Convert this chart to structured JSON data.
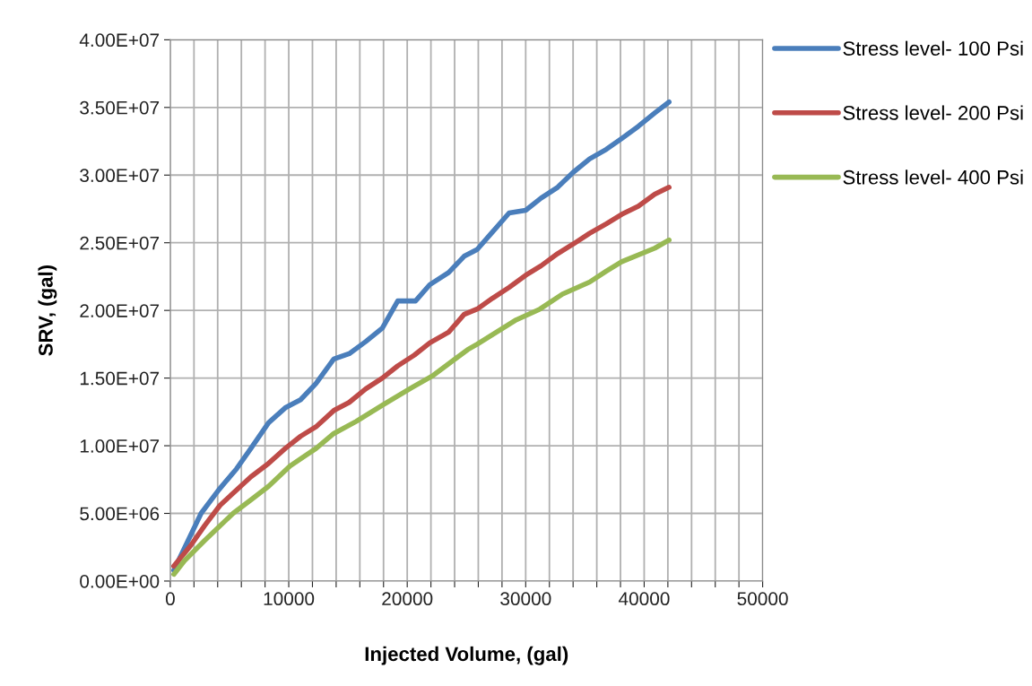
{
  "chart_data": {
    "type": "line",
    "xlabel": "Injected Volume, (gal)",
    "ylabel": "SRV, (gal)",
    "xlim": [
      0,
      50000
    ],
    "xticks": [
      0,
      {
        "value": 2000,
        "label": null
      },
      {
        "value": 4000,
        "label": null
      },
      {
        "value": 6000,
        "label": null
      },
      {
        "value": 8000,
        "label": null
      },
      10000,
      {
        "value": 12000,
        "label": null
      },
      {
        "value": 14000,
        "label": null
      },
      {
        "value": 16000,
        "label": null
      },
      {
        "value": 18000,
        "label": null
      },
      20000,
      {
        "value": 22000,
        "label": null
      },
      {
        "value": 24000,
        "label": null
      },
      {
        "value": 26000,
        "label": null
      },
      {
        "value": 28000,
        "label": null
      },
      30000,
      {
        "value": 32000,
        "label": null
      },
      {
        "value": 34000,
        "label": null
      },
      {
        "value": 36000,
        "label": null
      },
      {
        "value": 38000,
        "label": null
      },
      40000,
      {
        "value": 42000,
        "label": null
      },
      {
        "value": 44000,
        "label": null
      },
      {
        "value": 46000,
        "label": null
      },
      {
        "value": 48000,
        "label": null
      },
      50000
    ],
    "ylim": [
      0,
      40000000
    ],
    "yticks": [
      {
        "value": 0,
        "label": "0.00E+00"
      },
      {
        "value": 5000000,
        "label": "5.00E+06"
      },
      {
        "value": 10000000,
        "label": "1.00E+07"
      },
      {
        "value": 15000000,
        "label": "1.50E+07"
      },
      {
        "value": 20000000,
        "label": "2.00E+07"
      },
      {
        "value": 25000000,
        "label": "2.50E+07"
      },
      {
        "value": 30000000,
        "label": "3.00E+07"
      },
      {
        "value": 35000000,
        "label": "3.50E+07"
      },
      {
        "value": 40000000,
        "label": "4.00E+07"
      }
    ],
    "grid": true,
    "legend": "right",
    "marker": "none",
    "line_style": "solid",
    "series": [
      {
        "name": "Stress level- 100 Psi",
        "color": "#4a7ebb",
        "x": [
          300,
          2600,
          4100,
          5600,
          6800,
          8300,
          9700,
          11000,
          12300,
          13800,
          15100,
          16500,
          17900,
          19200,
          20700,
          21900,
          23500,
          24800,
          25900,
          27200,
          28600,
          30000,
          31300,
          32700,
          34000,
          35400,
          36800,
          38100,
          39500,
          40900,
          42100
        ],
        "values": [
          800000,
          5000000,
          6750000,
          8300000,
          9800000,
          11700000,
          12800000,
          13400000,
          14600000,
          16400000,
          16800000,
          17700000,
          18700000,
          20700000,
          20700000,
          21900000,
          22800000,
          24000000,
          24500000,
          25800000,
          27200000,
          27400000,
          28300000,
          29100000,
          30200000,
          31200000,
          31900000,
          32700000,
          33600000,
          34600000,
          35400000
        ]
      },
      {
        "name": "Stress level- 200 Psi",
        "color": "#be4b48",
        "x": [
          300,
          1700,
          2900,
          4200,
          6800,
          8300,
          9700,
          11000,
          12300,
          13800,
          15100,
          16500,
          17900,
          19200,
          20600,
          21900,
          23500,
          24800,
          25900,
          27200,
          28600,
          30000,
          31300,
          32700,
          34000,
          35400,
          36800,
          38100,
          39500,
          40900,
          42100
        ],
        "values": [
          1100000,
          2600000,
          4100000,
          5600000,
          7700000,
          8700000,
          9800000,
          10700000,
          11400000,
          12600000,
          13200000,
          14200000,
          15000000,
          15900000,
          16700000,
          17600000,
          18400000,
          19700000,
          20100000,
          20900000,
          21700000,
          22600000,
          23300000,
          24200000,
          24900000,
          25700000,
          26400000,
          27100000,
          27700000,
          28600000,
          29100000
        ]
      },
      {
        "name": "Stress level- 400 Psi",
        "color": "#98b954",
        "x": [
          300,
          1200,
          2900,
          5300,
          6800,
          8300,
          10100,
          12300,
          13800,
          15700,
          17900,
          20400,
          22200,
          25100,
          25900,
          29200,
          31200,
          33100,
          35400,
          36800,
          38100,
          40900,
          42100
        ],
        "values": [
          500000,
          1500000,
          3000000,
          5000000,
          6000000,
          7000000,
          8500000,
          9800000,
          10900000,
          11800000,
          13000000,
          14300000,
          15200000,
          17100000,
          17500000,
          19300000,
          20100000,
          21200000,
          22100000,
          22900000,
          23600000,
          24600000,
          25200000
        ]
      }
    ]
  }
}
